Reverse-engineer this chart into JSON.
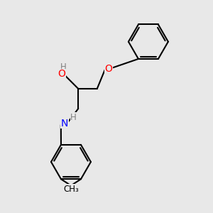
{
  "background_color": "#e8e8e8",
  "bond_color": "#000000",
  "bond_width": 1.5,
  "atom_colors": {
    "O": "#ff0000",
    "N": "#0000ff",
    "C": "#000000",
    "H": "#808080"
  },
  "font_size": 9,
  "fig_size": [
    3.0,
    3.0
  ],
  "dpi": 100
}
